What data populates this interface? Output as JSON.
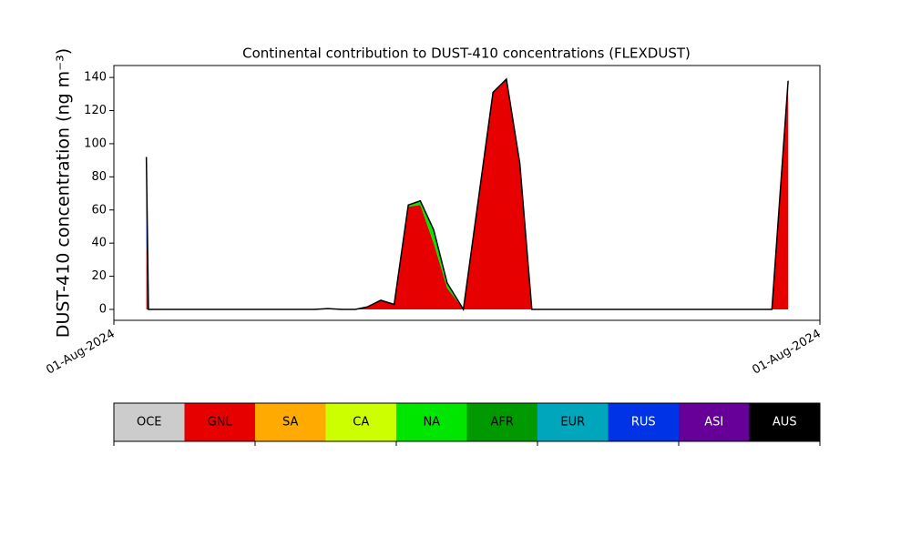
{
  "chart_data": {
    "type": "stacked_area",
    "title": "Continental contribution to DUST-410 concentrations (FLEXDUST)",
    "y_label": "DUST-410 concentration (ng m⁻³)",
    "x": [
      4.6,
      4.9,
      28.4,
      30.3,
      32.3,
      34.2,
      35.9,
      37.8,
      39.7,
      41.7,
      43.4,
      45.3,
      47.2,
      49.5,
      53.7,
      55.6,
      57.5,
      59.2,
      93.2,
      95.5
    ],
    "xlim": [
      0,
      100
    ],
    "xticks": [
      {
        "value": 0,
        "label": "01-Aug-2024"
      },
      {
        "value": 100,
        "label": "01-Aug-2024"
      }
    ],
    "ylim": [
      -6.6,
      147.2
    ],
    "yticks": [
      0,
      20,
      40,
      60,
      80,
      100,
      120,
      140
    ],
    "series": [
      {
        "name": "OCE",
        "color": "#cccccc",
        "values": [
          0,
          0,
          0,
          0,
          0,
          0,
          0,
          0,
          0,
          0,
          0,
          0,
          0,
          0,
          0,
          0,
          0,
          0,
          0,
          0
        ]
      },
      {
        "name": "GNL",
        "color": "#e60000",
        "values": [
          40,
          0,
          0,
          0.3,
          0,
          0,
          1.5,
          5.5,
          3,
          62,
          63,
          40,
          13,
          0,
          131,
          139,
          88,
          0,
          0,
          138
        ]
      },
      {
        "name": "SA",
        "color": "#ffaa00",
        "values": [
          0,
          0,
          0,
          0,
          0,
          0,
          0,
          0,
          0,
          0,
          0,
          0,
          0,
          0,
          0,
          0,
          0,
          0,
          0,
          0
        ]
      },
      {
        "name": "CA",
        "color": "#ccff00",
        "values": [
          0,
          0,
          0,
          0,
          0,
          0,
          0,
          0,
          0,
          0,
          0,
          0,
          0,
          0,
          0,
          0,
          0,
          0,
          0,
          0
        ]
      },
      {
        "name": "NA",
        "color": "#00e600",
        "values": [
          0,
          0,
          0,
          0,
          0,
          0,
          0,
          0,
          0,
          1,
          2.5,
          8,
          3,
          0,
          0,
          0,
          0,
          0,
          0,
          0
        ]
      },
      {
        "name": "AFR",
        "color": "#009900",
        "values": [
          0,
          0,
          0,
          0,
          0,
          0,
          0,
          0,
          0,
          0,
          0,
          0,
          0,
          0,
          0,
          0,
          0,
          0,
          0,
          0
        ]
      },
      {
        "name": "EUR",
        "color": "#00a6bb",
        "values": [
          0,
          0,
          0,
          0,
          0,
          0,
          0,
          0,
          0,
          0,
          0,
          0,
          0,
          0,
          0,
          0,
          0,
          0,
          0,
          0
        ]
      },
      {
        "name": "RUS",
        "color": "#0033e6",
        "values": [
          20,
          0,
          0,
          0.2,
          0,
          0,
          0,
          0,
          0,
          0,
          0,
          0,
          0,
          0,
          0,
          0,
          0,
          0,
          0,
          0
        ]
      },
      {
        "name": "ASI",
        "color": "#660099",
        "values": [
          0,
          0,
          0,
          0,
          0,
          0,
          0,
          0,
          0,
          0,
          0,
          0,
          0,
          0,
          0,
          0,
          0,
          0,
          0,
          0
        ]
      },
      {
        "name": "AUS",
        "color": "#000000",
        "values": [
          32,
          0,
          0,
          0,
          0,
          0,
          0,
          0,
          0,
          0,
          0,
          0,
          0,
          0,
          0,
          0,
          0,
          0,
          0,
          0
        ]
      }
    ]
  }
}
